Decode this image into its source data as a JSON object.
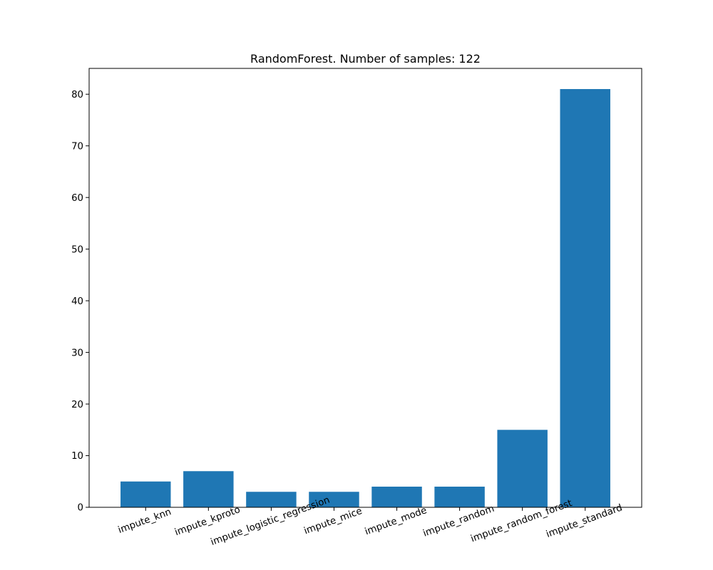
{
  "chart_data": {
    "type": "bar",
    "title": "RandomForest. Number of samples: 122",
    "xlabel": "",
    "ylabel": "",
    "categories": [
      "impute_knn",
      "impute_kproto",
      "impute_logistic_regression",
      "impute_mice",
      "impute_mode",
      "impute_random",
      "impute_random_forest",
      "impute_standard"
    ],
    "values": [
      5,
      7,
      3,
      3,
      4,
      4,
      15,
      81
    ],
    "ylim": [
      0,
      85
    ],
    "yticks": [
      0,
      10,
      20,
      30,
      40,
      50,
      60,
      70,
      80
    ],
    "xtick_rotation_deg": 20,
    "grid": false,
    "legend": "none",
    "bar_color": "#1f77b4"
  }
}
